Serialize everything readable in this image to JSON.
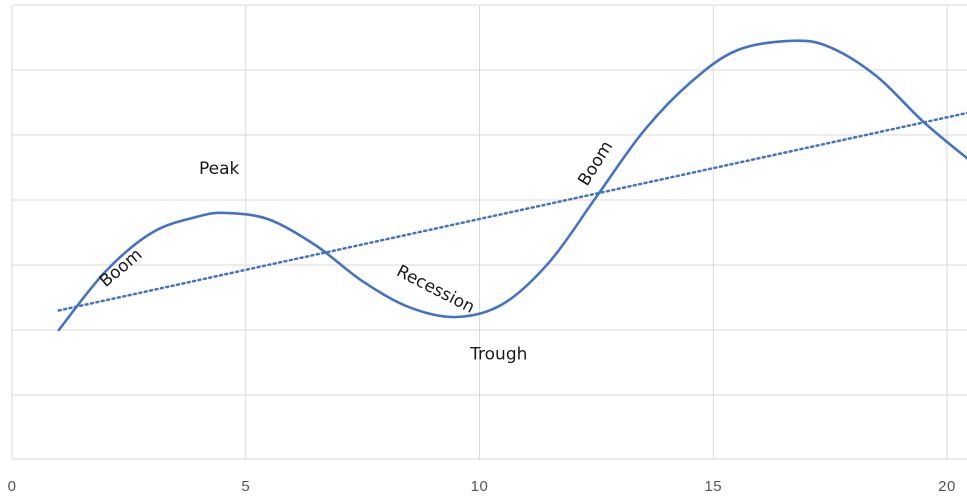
{
  "chart_data": {
    "type": "line",
    "title": "",
    "xlabel": "",
    "ylabel": "",
    "xlim": [
      0,
      20.5
    ],
    "ylim": [
      0,
      7
    ],
    "x_ticks": [
      0,
      5,
      10,
      15,
      20
    ],
    "x_tick_labels": [
      "0",
      "5",
      "10",
      "15",
      "20"
    ],
    "y_gridlines": [
      1,
      2,
      3,
      4,
      5,
      6,
      7
    ],
    "grid": true,
    "legend": "none",
    "series": [
      {
        "style": "solid",
        "color": "#4472c4",
        "points": [
          [
            1,
            2
          ],
          [
            2,
            2.9
          ],
          [
            3,
            3.5
          ],
          [
            4,
            3.75
          ],
          [
            4.6,
            3.8
          ],
          [
            5.5,
            3.7
          ],
          [
            6.5,
            3.3
          ],
          [
            7.5,
            2.75
          ],
          [
            8.5,
            2.35
          ],
          [
            9.5,
            2.2
          ],
          [
            10.5,
            2.4
          ],
          [
            11.5,
            3.05
          ],
          [
            12.5,
            4.05
          ],
          [
            13.5,
            5.05
          ],
          [
            14.5,
            5.8
          ],
          [
            15.5,
            6.3
          ],
          [
            16.7,
            6.45
          ],
          [
            17.5,
            6.35
          ],
          [
            18.5,
            5.9
          ],
          [
            19.5,
            5.2
          ],
          [
            20.5,
            4.6
          ]
        ]
      },
      {
        "style": "dotted",
        "color": "#4472c4",
        "points": [
          [
            1,
            2.3
          ],
          [
            20.5,
            5.35
          ]
        ]
      }
    ],
    "annotations": [
      {
        "text": "Boom",
        "x": 2.0,
        "y": 2.65,
        "rotate": -40
      },
      {
        "text": "Peak",
        "x": 4.0,
        "y": 4.4,
        "rotate": 0
      },
      {
        "text": "Recession",
        "x": 8.2,
        "y": 2.85,
        "rotate": 27
      },
      {
        "text": "Trough",
        "x": 9.8,
        "y": 1.55,
        "rotate": 0
      },
      {
        "text": "Boom",
        "x": 12.3,
        "y": 4.2,
        "rotate": -58
      }
    ]
  }
}
